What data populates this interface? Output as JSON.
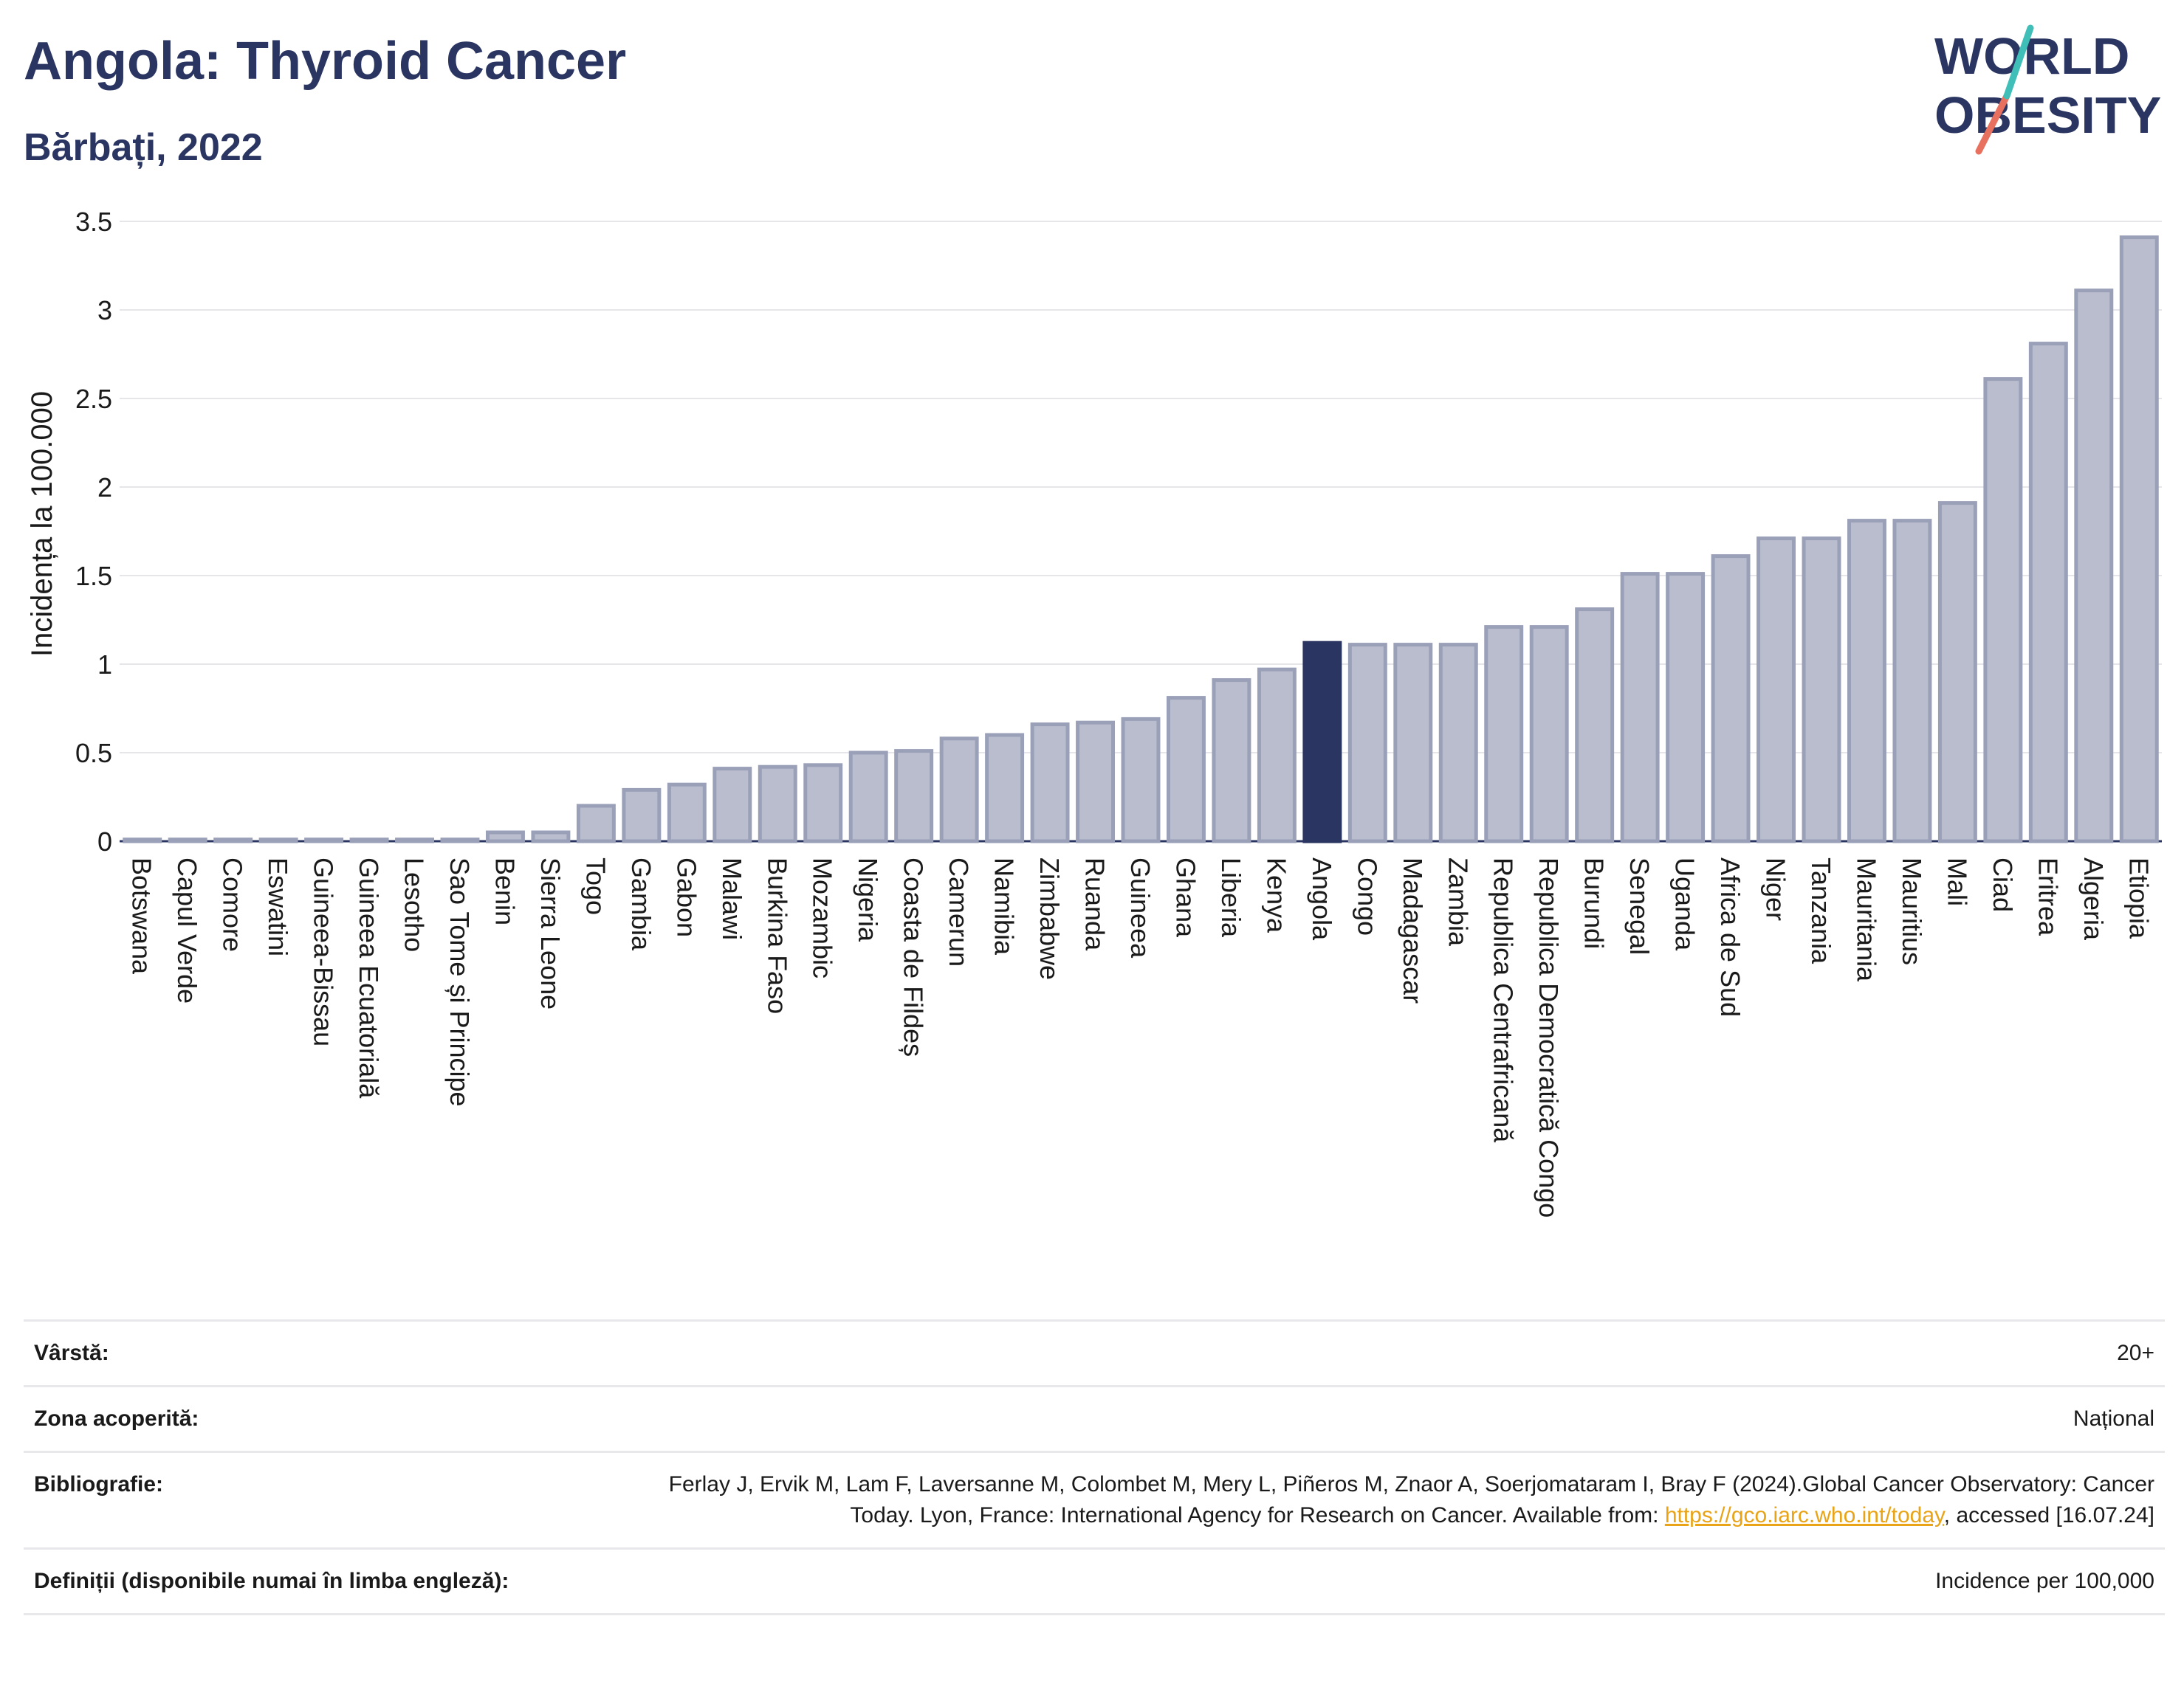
{
  "header": {
    "title": "Angola: Thyroid Cancer",
    "subtitle": "Bărbați, 2022"
  },
  "logo": {
    "line1": "WORLD",
    "line2": "OBESITY"
  },
  "colors": {
    "bar": "#b9bdcd",
    "bar_stroke": "#9aa0b8",
    "highlight": "#2a3561",
    "grid": "#e6e6ea",
    "link": "#e8a317"
  },
  "chart_data": {
    "type": "bar",
    "ylabel": "Incidența la 100.000",
    "ylim": [
      0,
      3.5
    ],
    "yticks": [
      0,
      0.5,
      1,
      1.5,
      2,
      2.5,
      3,
      3.5
    ],
    "ytick_labels": [
      "0",
      "0.5",
      "1",
      "1.5",
      "2",
      "2.5",
      "3",
      "3.5"
    ],
    "highlight": "Angola",
    "grid": true,
    "categories": [
      "Botswana",
      "Capul Verde",
      "Comore",
      "Eswatini",
      "Guineea-Bissau",
      "Guineea Ecuatorială",
      "Lesotho",
      "Sao Tome și Principe",
      "Benin",
      "Sierra Leone",
      "Togo",
      "Gambia",
      "Gabon",
      "Malawi",
      "Burkina Faso",
      "Mozambic",
      "Nigeria",
      "Coasta de Fildeș",
      "Camerun",
      "Namibia",
      "Zimbabwe",
      "Ruanda",
      "Guineea",
      "Ghana",
      "Liberia",
      "Kenya",
      "Angola",
      "Congo",
      "Madagascar",
      "Zambia",
      "Republica Centrafricană",
      "Republica Democratică Congo",
      "Burundi",
      "Senegal",
      "Uganda",
      "Africa de Sud",
      "Niger",
      "Tanzania",
      "Mauritania",
      "Mauritius",
      "Mali",
      "Ciad",
      "Eritrea",
      "Algeria",
      "Etiopia"
    ],
    "values": [
      0.01,
      0.01,
      0.01,
      0.01,
      0.01,
      0.01,
      0.01,
      0.01,
      0.05,
      0.05,
      0.2,
      0.29,
      0.32,
      0.41,
      0.42,
      0.43,
      0.5,
      0.51,
      0.58,
      0.6,
      0.66,
      0.67,
      0.69,
      0.81,
      0.91,
      0.97,
      1.12,
      1.11,
      1.11,
      1.11,
      1.21,
      1.21,
      1.31,
      1.51,
      1.51,
      1.61,
      1.71,
      1.71,
      1.81,
      1.81,
      1.91,
      2.61,
      2.81,
      3.11,
      3.41
    ]
  },
  "info": [
    {
      "label": "Vârstă:",
      "value": "20+"
    },
    {
      "label": "Zona acoperită:",
      "value": "Național"
    },
    {
      "label": "Bibliografie:",
      "value_before": "Ferlay J, Ervik M, Lam F, Laversanne M, Colombet M, Mery L, Piñeros M, Znaor A, Soerjomataram I, Bray F (2024).Global Cancer Observatory: Cancer Today. Lyon, France: International Agency for Research on Cancer. Available from: ",
      "link": "https://gco.iarc.who.int/today",
      "value_after": ", accessed [16.07.24]"
    },
    {
      "label": "Definiții (disponibile numai în limba engleză):",
      "value": "Incidence per 100,000"
    }
  ]
}
